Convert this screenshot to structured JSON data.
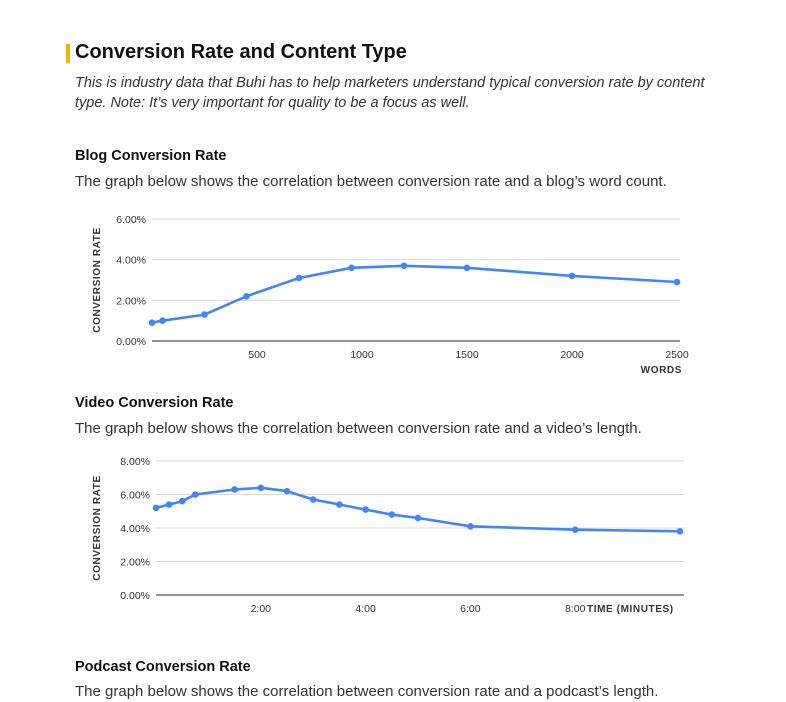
{
  "header": {
    "title": "Conversion Rate and Content Type",
    "intro": "This is industry data that Buhi has to help marketers understand typical conversion rate by content type. Note: It’s very important for quality to be a focus as well."
  },
  "blog": {
    "title": "Blog Conversion Rate",
    "description": "The graph below shows the correlation between conversion rate and a blog’s word count."
  },
  "video": {
    "title": "Video Conversion Rate",
    "description": "The graph below shows the correlation between conversion rate and a video’s length."
  },
  "podcast": {
    "title": "Podcast Conversion Rate",
    "description": "The graph below shows the correlation between conversion rate and a podcast’s length."
  },
  "colors": {
    "line": "#4285f4",
    "grid": "#d9d9d9",
    "axis": "#555555",
    "accent": "#f5b400"
  },
  "chart_data": [
    {
      "type": "line",
      "xlabel": "WORDS",
      "ylabel": "CONVERSION RATE",
      "xlim": [
        0,
        2500
      ],
      "ylim": [
        0,
        6
      ],
      "x_ticks": [
        500,
        1000,
        1500,
        2000,
        2500
      ],
      "x_tick_labels": [
        "500",
        "1000",
        "1500",
        "2000",
        "2500"
      ],
      "y_ticks": [
        0,
        2,
        4,
        6
      ],
      "y_tick_labels": [
        "0.00%",
        "2.00%",
        "4.00%",
        "6.00%"
      ],
      "grid": true,
      "series": [
        {
          "x": [
            0,
            50,
            250,
            450,
            700,
            950,
            1200,
            1500,
            2000,
            2500
          ],
          "y": [
            0.9,
            1.0,
            1.3,
            2.2,
            3.1,
            3.6,
            3.7,
            3.6,
            3.2,
            2.9
          ]
        }
      ]
    },
    {
      "type": "line",
      "xlabel": "TIME (MINUTES)",
      "ylabel": "CONVERSION RATE",
      "xlim": [
        0,
        10
      ],
      "ylim": [
        0,
        8
      ],
      "x_ticks": [
        2,
        4,
        6,
        8
      ],
      "x_tick_labels": [
        "2:00",
        "4:00",
        "6:00",
        "8:00"
      ],
      "y_ticks": [
        0,
        2,
        4,
        6,
        8
      ],
      "y_tick_labels": [
        "0.00%",
        "2.00%",
        "4.00%",
        "6.00%",
        "8.00%"
      ],
      "grid": true,
      "series": [
        {
          "x": [
            0,
            0.25,
            0.5,
            0.75,
            1.5,
            2.0,
            2.5,
            3.0,
            3.5,
            4.0,
            4.5,
            5.0,
            6.0,
            8.0,
            10.0
          ],
          "y": [
            5.2,
            5.4,
            5.6,
            6.0,
            6.3,
            6.4,
            6.2,
            5.7,
            5.4,
            5.1,
            4.8,
            4.6,
            4.1,
            3.9,
            3.8
          ]
        }
      ]
    }
  ]
}
